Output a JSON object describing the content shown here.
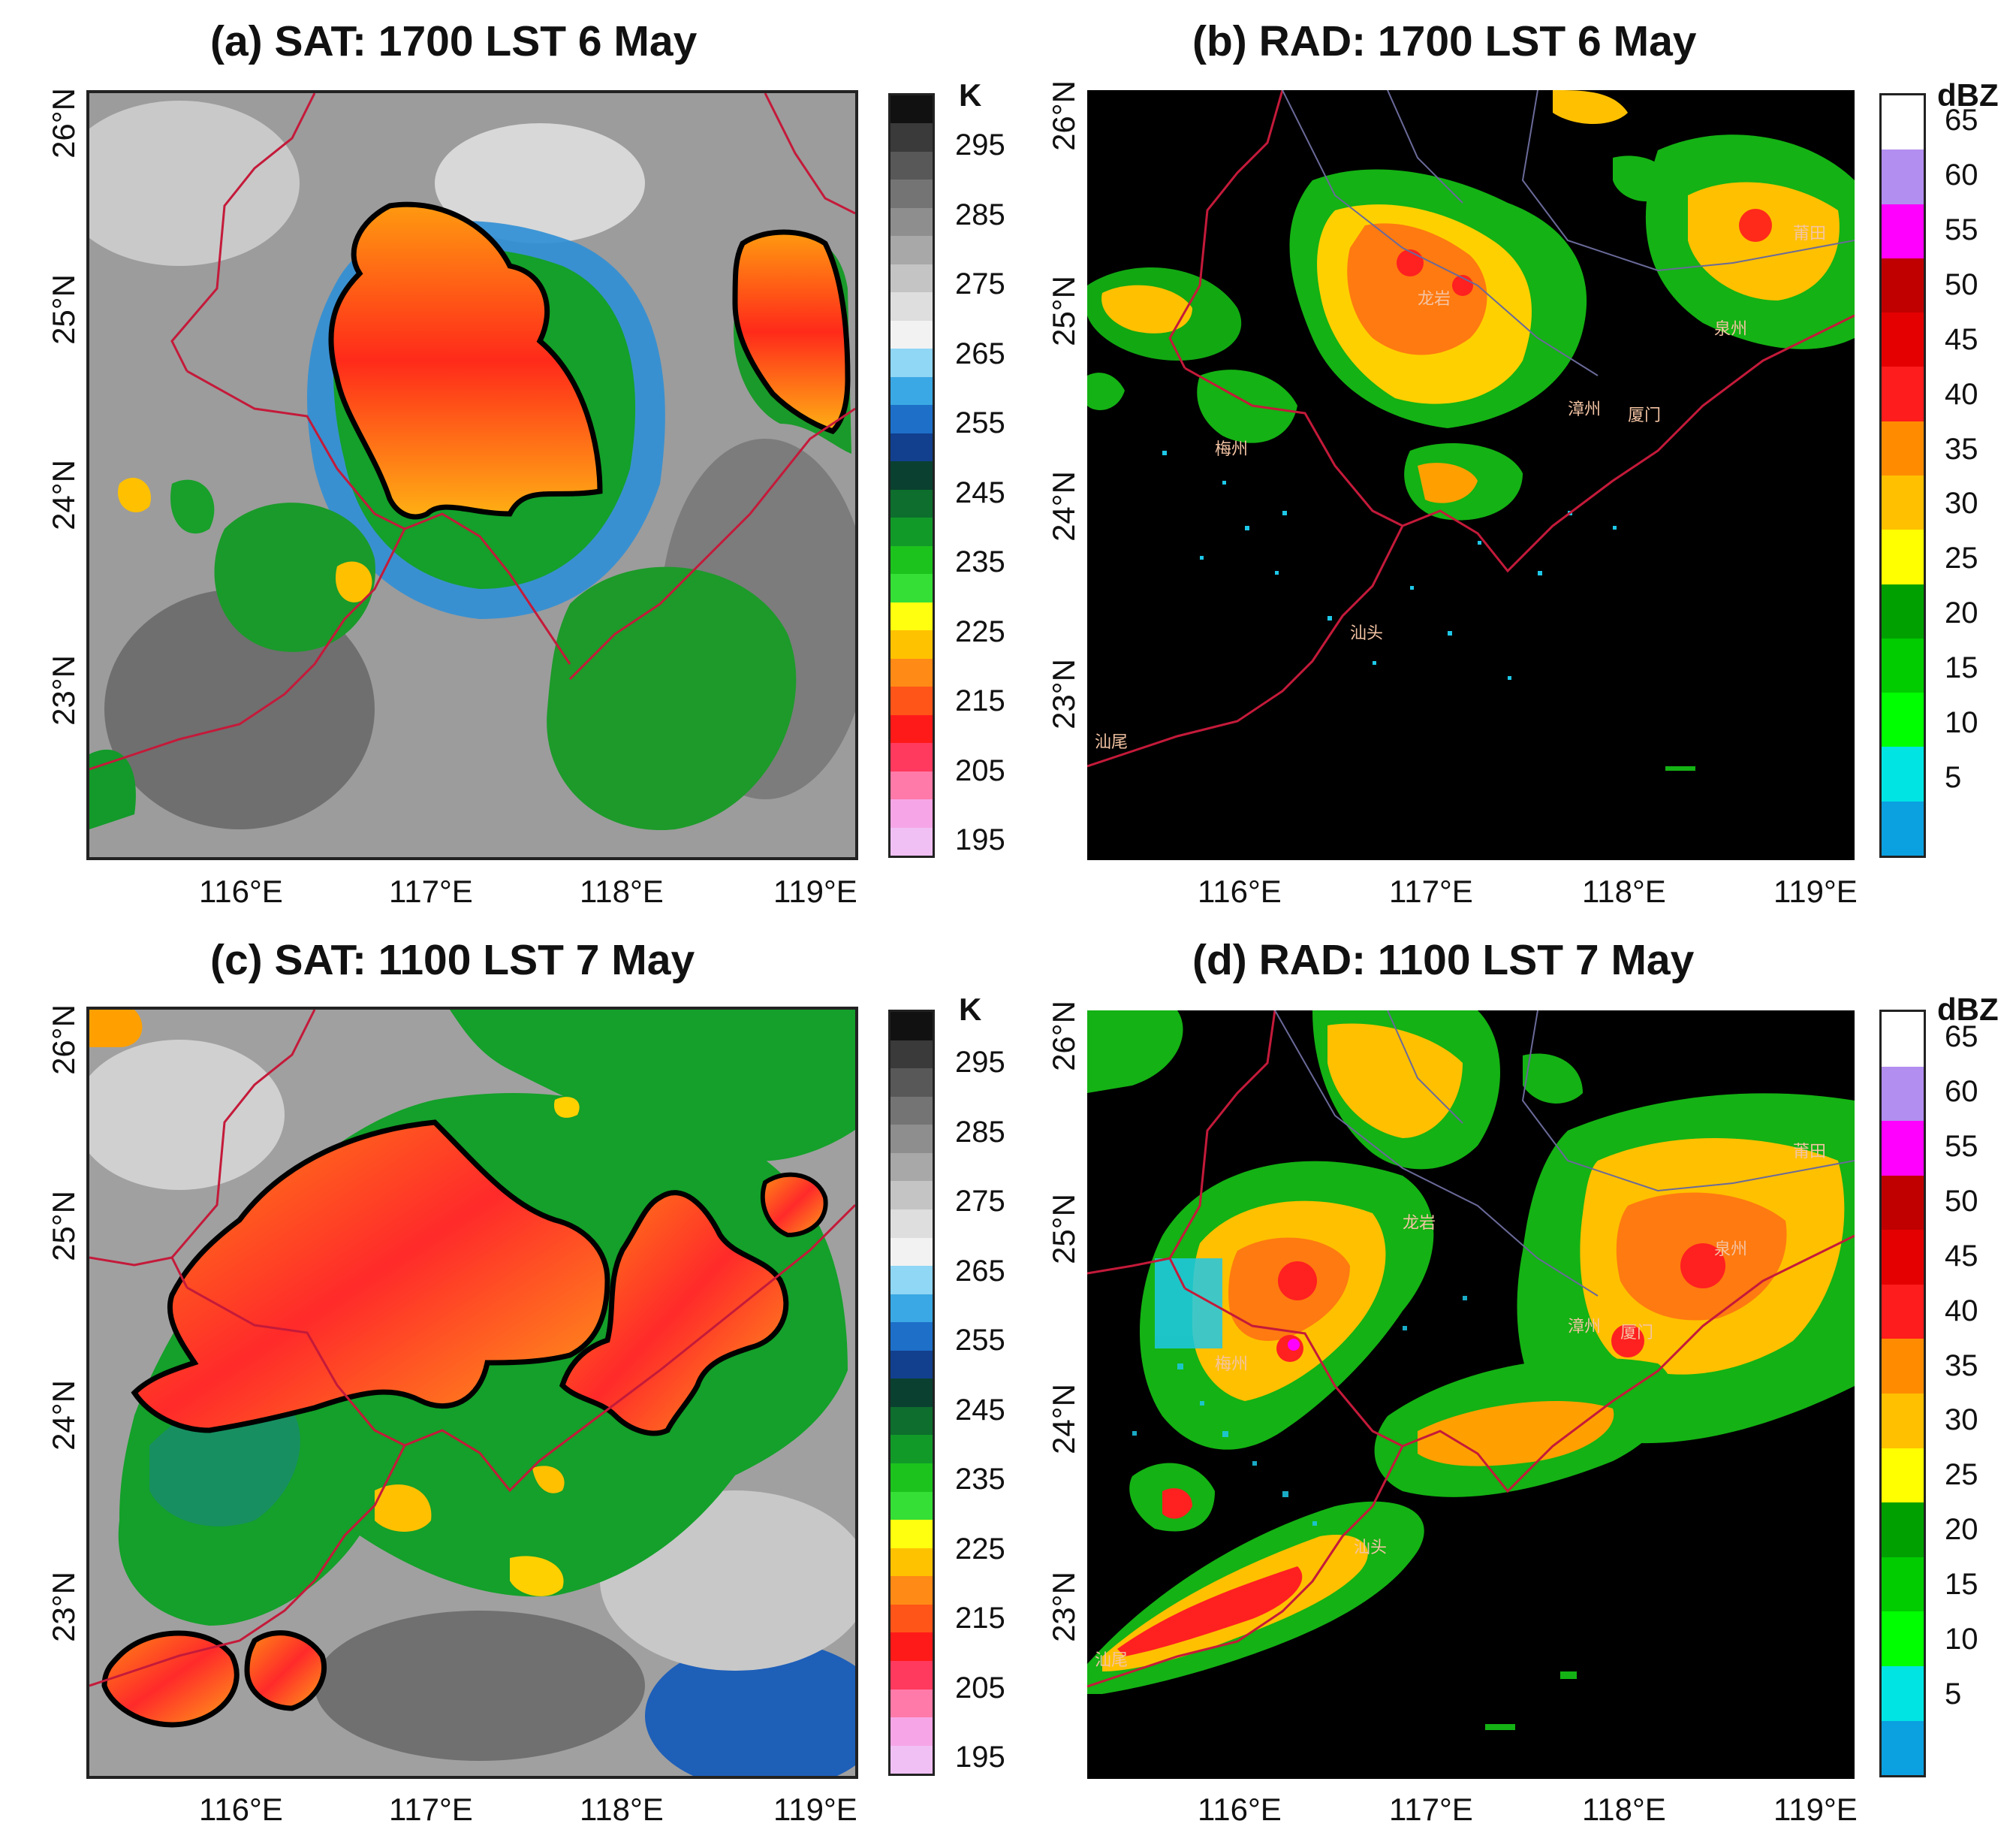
{
  "panels": [
    {
      "id": "a",
      "title": "(a) SAT: 1700 LST 6 May"
    },
    {
      "id": "b",
      "title": "(b) RAD: 1700 LST 6 May"
    },
    {
      "id": "c",
      "title": "(c) SAT: 1100 LST 7 May"
    },
    {
      "id": "d",
      "title": "(d) RAD: 1100 LST 7 May"
    }
  ],
  "axes": {
    "lon_labels": [
      "116°E",
      "117°E",
      "118°E",
      "119°E"
    ],
    "lat_labels": [
      "26°N",
      "25°N",
      "24°N",
      "23°N"
    ]
  },
  "satellite_colorbar": {
    "unit": "K",
    "labels": [
      "295",
      "285",
      "275",
      "265",
      "255",
      "245",
      "235",
      "225",
      "215",
      "205",
      "195"
    ],
    "colors": [
      "#111111",
      "#3a3a3a",
      "#585858",
      "#747474",
      "#8e8e8e",
      "#a8a8a8",
      "#c4c4c4",
      "#dedede",
      "#f2f2f2",
      "#90d6f5",
      "#3aa8e4",
      "#1d6fc8",
      "#123f8e",
      "#0a4030",
      "#0d6e2d",
      "#129a29",
      "#1cc31c",
      "#35df35",
      "#ffff10",
      "#ffc200",
      "#ff8a16",
      "#ff5518",
      "#ff1a1a",
      "#ff3a5e",
      "#ff7aa8",
      "#f6a6e6",
      "#f0c0f4"
    ]
  },
  "radar_colorbar": {
    "unit": "dBZ",
    "labels": [
      "65",
      "60",
      "55",
      "50",
      "45",
      "40",
      "35",
      "30",
      "25",
      "20",
      "15",
      "10",
      "5"
    ],
    "colors": [
      "#ffffff",
      "#b28ef0",
      "#ff00ff",
      "#c00000",
      "#e40000",
      "#ff1c1c",
      "#ff8c00",
      "#ffc000",
      "#ffff00",
      "#00a000",
      "#00cc00",
      "#00ff00",
      "#00e4e4",
      "#0ba0e0"
    ]
  },
  "cities": {
    "longyan": "龙岩",
    "putian": "莆田",
    "quanzhou": "泉州",
    "zhangzhou": "漳州",
    "xiamen": "厦门",
    "meizhou": "梅州",
    "shantou": "汕头",
    "shanwei": "汕尾"
  }
}
